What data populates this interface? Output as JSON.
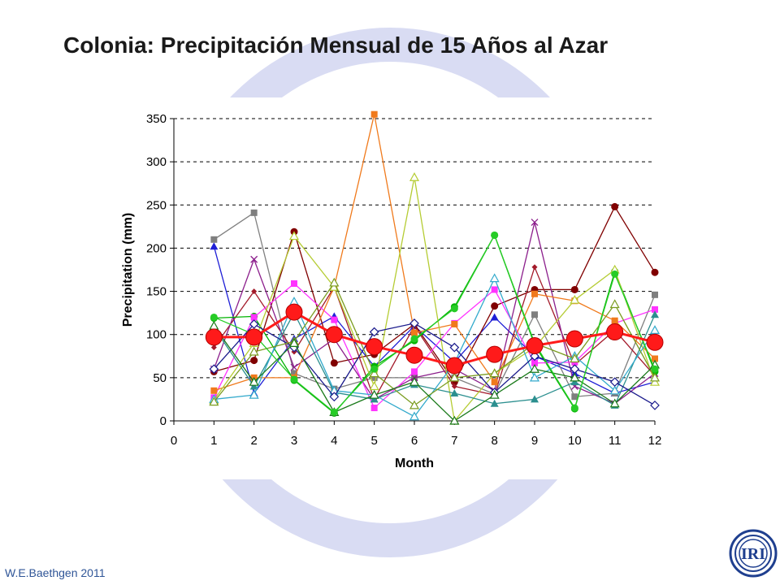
{
  "slide": {
    "title": "Colonia: Precipitación Mensual de 15 Años al Azar",
    "footer": "W.E.Baethgen 2011",
    "logo_text": "IRI"
  },
  "colors": {
    "background_ellipse": "#d9dcf3",
    "title": "#1a1a1a",
    "footer": "#2f5597",
    "grid": "#000000",
    "average_series": "#ff1a1a",
    "logo": "#1f3f8f"
  },
  "chart_data": {
    "type": "line",
    "title": "",
    "xlabel": "Month",
    "ylabel": "Precipitation (mm)",
    "x": [
      1,
      2,
      3,
      4,
      5,
      6,
      7,
      8,
      9,
      10,
      11,
      12
    ],
    "xlim": [
      0,
      12
    ],
    "ylim": [
      0,
      350
    ],
    "xticks": [
      0,
      1,
      2,
      3,
      4,
      5,
      6,
      7,
      8,
      9,
      10,
      11,
      12
    ],
    "yticks": [
      0,
      50,
      100,
      150,
      200,
      250,
      300,
      350
    ],
    "grid": "horizontal dashed",
    "legend": "none",
    "series": [
      {
        "color": "#1f1fd6",
        "marker": "triangle-filled",
        "values": [
          202,
          32,
          95,
          121,
          63,
          110,
          68,
          120,
          75,
          55,
          32,
          45
        ]
      },
      {
        "color": "#7f7f7f",
        "marker": "square",
        "values": [
          210,
          241,
          55,
          37,
          50,
          50,
          50,
          31,
          123,
          28,
          32,
          146
        ]
      },
      {
        "color": "#800000",
        "marker": "circle",
        "values": [
          57,
          70,
          219,
          67,
          77,
          112,
          45,
          133,
          152,
          152,
          248,
          172
        ]
      },
      {
        "color": "#a31a2a",
        "marker": "diamond-small",
        "values": [
          85,
          150,
          80,
          155,
          25,
          110,
          40,
          30,
          178,
          65,
          105,
          52
        ]
      },
      {
        "color": "#8c1f8c",
        "marker": "x",
        "values": [
          60,
          187,
          62,
          95,
          25,
          50,
          60,
          35,
          230,
          40,
          20,
          55
        ]
      },
      {
        "color": "#00b300",
        "marker": "circle",
        "values": [
          119,
          121,
          47,
          9,
          63,
          93,
          132,
          215,
          88,
          14,
          173,
          57
        ]
      },
      {
        "color": "#ff33ff",
        "marker": "square",
        "values": [
          27,
          120,
          159,
          117,
          15,
          57,
          113,
          152,
          67,
          68,
          113,
          129
        ]
      },
      {
        "color": "#f07a1c",
        "marker": "square",
        "values": [
          35,
          50,
          50,
          155,
          355,
          102,
          112,
          45,
          147,
          139,
          116,
          72
        ]
      },
      {
        "color": "#b5cc33",
        "marker": "triangle-outline",
        "values": [
          24,
          90,
          214,
          155,
          40,
          282,
          0,
          55,
          85,
          140,
          175,
          45
        ]
      },
      {
        "color": "#2b8f8f",
        "marker": "triangle-filled",
        "values": [
          108,
          40,
          125,
          33,
          25,
          42,
          32,
          20,
          25,
          45,
          18,
          123
        ]
      },
      {
        "color": "#33aacc",
        "marker": "triangle-outline",
        "values": [
          25,
          30,
          138,
          35,
          30,
          5,
          67,
          165,
          50,
          75,
          35,
          105
        ]
      },
      {
        "color": "#1a1a8c",
        "marker": "diamond-outline",
        "values": [
          60,
          112,
          85,
          28,
          103,
          113,
          85,
          33,
          75,
          60,
          45,
          18
        ]
      },
      {
        "color": "#7a9c1f",
        "marker": "triangle-outline",
        "values": [
          22,
          80,
          92,
          160,
          55,
          18,
          50,
          55,
          90,
          72,
          135,
          50
        ]
      },
      {
        "color": "#1a7a1a",
        "marker": "triangle-outline",
        "values": [
          110,
          45,
          90,
          10,
          30,
          45,
          0,
          30,
          60,
          50,
          20,
          65
        ]
      },
      {
        "color": "#26cc26",
        "marker": "circle",
        "values": [
          120,
          100,
          48,
          10,
          60,
          95,
          130,
          215,
          90,
          15,
          170,
          60
        ]
      },
      {
        "name": "",
        "color": "#ff1a1a",
        "marker": "circle-large",
        "emphasis": true,
        "values": [
          97,
          97,
          126,
          100,
          86,
          76,
          64,
          77,
          87,
          95,
          103,
          91
        ]
      }
    ]
  }
}
